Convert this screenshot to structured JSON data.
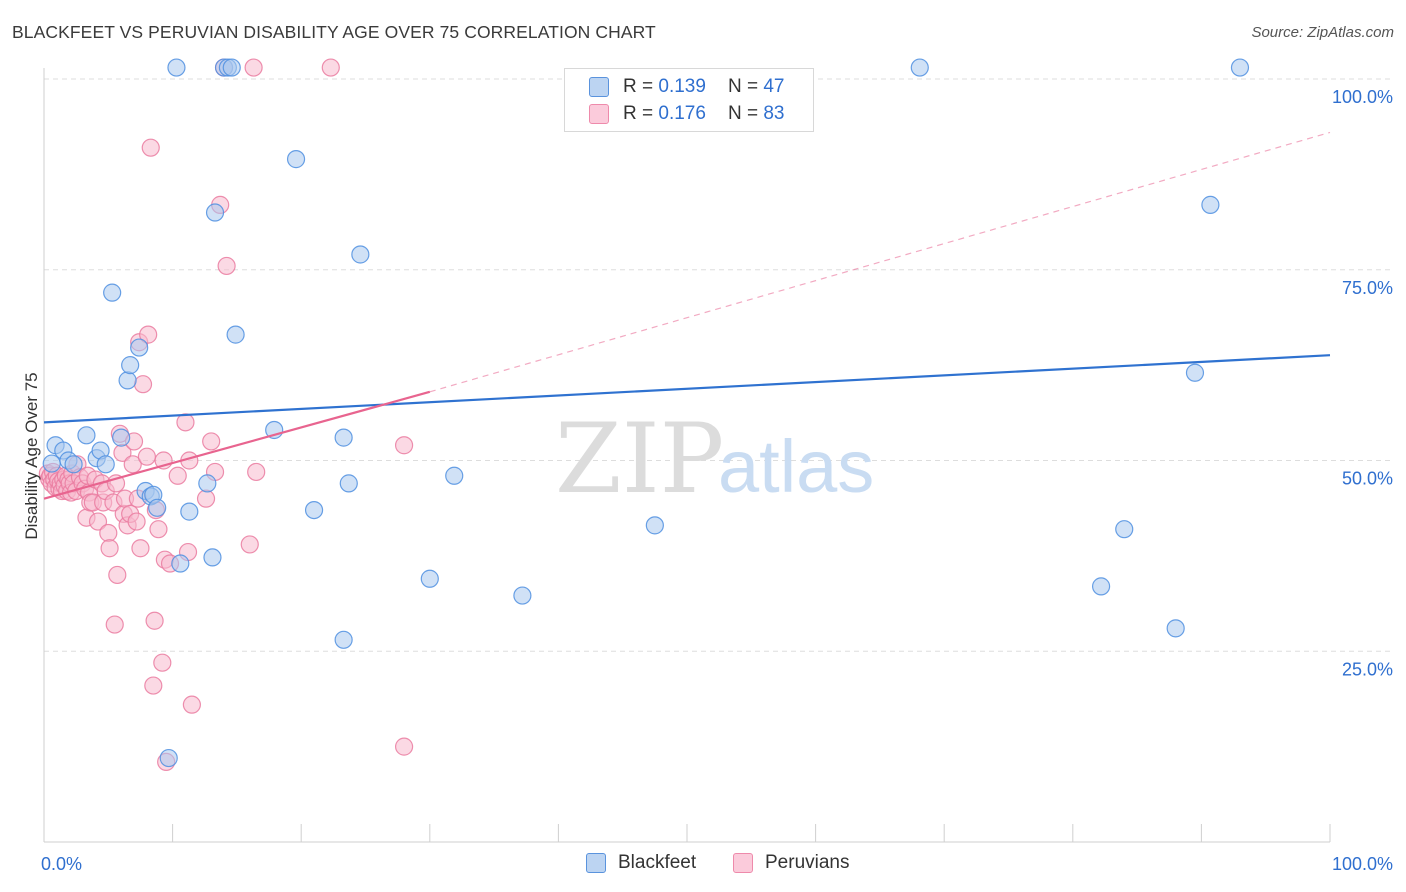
{
  "title": "BLACKFEET VS PERUVIAN DISABILITY AGE OVER 75 CORRELATION CHART",
  "source": "Source: ZipAtlas.com",
  "watermark": {
    "zip": "ZIP",
    "atlas": "atlas"
  },
  "legend": {
    "r_label": "R =",
    "n_label": "N =",
    "blackfeet": {
      "r": "0.139",
      "n": "47"
    },
    "peruvians": {
      "r": "0.176",
      "n": "83"
    }
  },
  "colors": {
    "blackfeet_fill": "#a9c8ef",
    "blackfeet_stroke": "#4f8fe0",
    "blackfeet_line": "#2f72d0",
    "peruvians_fill": "#f7b9cd",
    "peruvians_stroke": "#ea7ba0",
    "peruvians_line": "#e8648f",
    "tick_label": "#2f6fcf",
    "grid": "#dddddd"
  },
  "chart_data": {
    "type": "scatter",
    "title": "BLACKFEET VS PERUVIAN DISABILITY AGE OVER 75 CORRELATION CHART",
    "xlabel": "",
    "ylabel": "Disability Age Over 75",
    "xlim": [
      0,
      100
    ],
    "ylim": [
      0,
      100
    ],
    "x_tick_labels": {
      "0": "0.0%",
      "100": "100.0%"
    },
    "y_tick_labels": {
      "25": "25.0%",
      "50": "50.0%",
      "75": "75.0%",
      "100": "100.0%"
    },
    "grid": true,
    "legend_placement": "top-center and bottom",
    "series": [
      {
        "name": "Blackfeet",
        "r": 0.139,
        "n": 47,
        "trend": {
          "x": [
            0,
            100
          ],
          "y": [
            55.0,
            63.8
          ]
        },
        "points": [
          [
            0.6,
            49.6
          ],
          [
            0.9,
            52.0
          ],
          [
            1.5,
            51.3
          ],
          [
            1.9,
            50.0
          ],
          [
            2.3,
            49.5
          ],
          [
            3.3,
            53.3
          ],
          [
            4.1,
            50.3
          ],
          [
            4.4,
            51.3
          ],
          [
            4.8,
            49.5
          ],
          [
            5.3,
            72.0
          ],
          [
            6.0,
            53.0
          ],
          [
            6.5,
            60.5
          ],
          [
            6.7,
            62.5
          ],
          [
            7.4,
            64.8
          ],
          [
            7.9,
            46.0
          ],
          [
            8.3,
            45.3
          ],
          [
            8.5,
            45.5
          ],
          [
            8.8,
            43.8
          ],
          [
            9.7,
            11.0
          ],
          [
            10.6,
            36.5
          ],
          [
            10.3,
            101.5
          ],
          [
            11.3,
            43.3
          ],
          [
            12.7,
            47.0
          ],
          [
            13.1,
            37.3
          ],
          [
            13.3,
            82.5
          ],
          [
            14.0,
            101.5
          ],
          [
            14.3,
            101.5
          ],
          [
            14.6,
            101.5
          ],
          [
            14.9,
            66.5
          ],
          [
            17.9,
            54.0
          ],
          [
            19.6,
            89.5
          ],
          [
            21.0,
            43.5
          ],
          [
            23.3,
            53.0
          ],
          [
            23.3,
            26.5
          ],
          [
            23.7,
            47.0
          ],
          [
            24.6,
            77.0
          ],
          [
            30.0,
            34.5
          ],
          [
            31.9,
            48.0
          ],
          [
            37.2,
            32.3
          ],
          [
            47.5,
            41.5
          ],
          [
            68.1,
            101.5
          ],
          [
            82.2,
            33.5
          ],
          [
            84.0,
            41.0
          ],
          [
            88.0,
            28.0
          ],
          [
            89.5,
            61.5
          ],
          [
            90.7,
            83.5
          ],
          [
            93.0,
            101.5
          ]
        ]
      },
      {
        "name": "Peruvians",
        "r": 0.176,
        "n": 83,
        "trend": {
          "x": [
            0,
            30
          ],
          "y": [
            45.0,
            59.0
          ],
          "dashed_extension": {
            "x": [
              30,
              100
            ],
            "y": [
              59.0,
              93.0
            ]
          }
        },
        "points": [
          [
            0.3,
            48.3
          ],
          [
            0.4,
            47.6
          ],
          [
            0.5,
            48.0
          ],
          [
            0.6,
            47.0
          ],
          [
            0.7,
            48.5
          ],
          [
            0.8,
            47.5
          ],
          [
            0.9,
            46.5
          ],
          [
            1.0,
            48.0
          ],
          [
            1.1,
            47.3
          ],
          [
            1.2,
            46.3
          ],
          [
            1.3,
            47.0
          ],
          [
            1.4,
            46.0
          ],
          [
            1.5,
            47.5
          ],
          [
            1.6,
            46.7
          ],
          [
            1.7,
            48.0
          ],
          [
            1.8,
            46.0
          ],
          [
            1.9,
            47.5
          ],
          [
            2.0,
            47.0
          ],
          [
            2.1,
            45.8
          ],
          [
            2.2,
            48.3
          ],
          [
            2.3,
            47.0
          ],
          [
            2.5,
            46.0
          ],
          [
            2.6,
            49.5
          ],
          [
            2.8,
            47.8
          ],
          [
            3.0,
            47.0
          ],
          [
            3.2,
            46.3
          ],
          [
            3.3,
            42.5
          ],
          [
            3.4,
            48.0
          ],
          [
            3.5,
            45.8
          ],
          [
            3.6,
            44.5
          ],
          [
            3.8,
            44.5
          ],
          [
            4.0,
            47.5
          ],
          [
            4.2,
            42.0
          ],
          [
            4.5,
            47.0
          ],
          [
            4.6,
            44.5
          ],
          [
            4.8,
            46.0
          ],
          [
            5.0,
            40.5
          ],
          [
            5.1,
            38.5
          ],
          [
            5.4,
            44.5
          ],
          [
            5.6,
            47.0
          ],
          [
            5.5,
            28.5
          ],
          [
            5.7,
            35.0
          ],
          [
            5.9,
            53.5
          ],
          [
            6.1,
            51.0
          ],
          [
            6.2,
            43.0
          ],
          [
            6.3,
            45.0
          ],
          [
            6.5,
            41.5
          ],
          [
            6.7,
            43.0
          ],
          [
            6.9,
            49.5
          ],
          [
            7.0,
            52.5
          ],
          [
            7.2,
            42.0
          ],
          [
            7.3,
            45.0
          ],
          [
            7.4,
            65.5
          ],
          [
            7.5,
            38.5
          ],
          [
            7.7,
            60.0
          ],
          [
            8.0,
            50.5
          ],
          [
            8.1,
            66.5
          ],
          [
            8.3,
            91.0
          ],
          [
            8.5,
            20.5
          ],
          [
            8.6,
            29.0
          ],
          [
            8.7,
            43.5
          ],
          [
            8.9,
            41.0
          ],
          [
            9.2,
            23.5
          ],
          [
            9.3,
            50.0
          ],
          [
            9.4,
            37.0
          ],
          [
            9.5,
            10.5
          ],
          [
            9.8,
            36.5
          ],
          [
            10.4,
            48.0
          ],
          [
            11.0,
            55.0
          ],
          [
            11.2,
            38.0
          ],
          [
            11.3,
            50.0
          ],
          [
            11.5,
            18.0
          ],
          [
            12.6,
            45.0
          ],
          [
            13.0,
            52.5
          ],
          [
            13.3,
            48.5
          ],
          [
            13.7,
            83.5
          ],
          [
            14.0,
            101.5
          ],
          [
            14.2,
            75.5
          ],
          [
            16.0,
            39.0
          ],
          [
            16.5,
            48.5
          ],
          [
            16.3,
            101.5
          ],
          [
            22.3,
            101.5
          ],
          [
            28.0,
            12.5
          ],
          [
            28.0,
            52.0
          ]
        ]
      }
    ]
  },
  "axis_labels": {
    "x_min": "0.0%",
    "x_max": "100.0%",
    "y_25": "25.0%",
    "y_50": "50.0%",
    "y_75": "75.0%",
    "y_100": "100.0%",
    "ylabel": "Disability Age Over 75"
  }
}
